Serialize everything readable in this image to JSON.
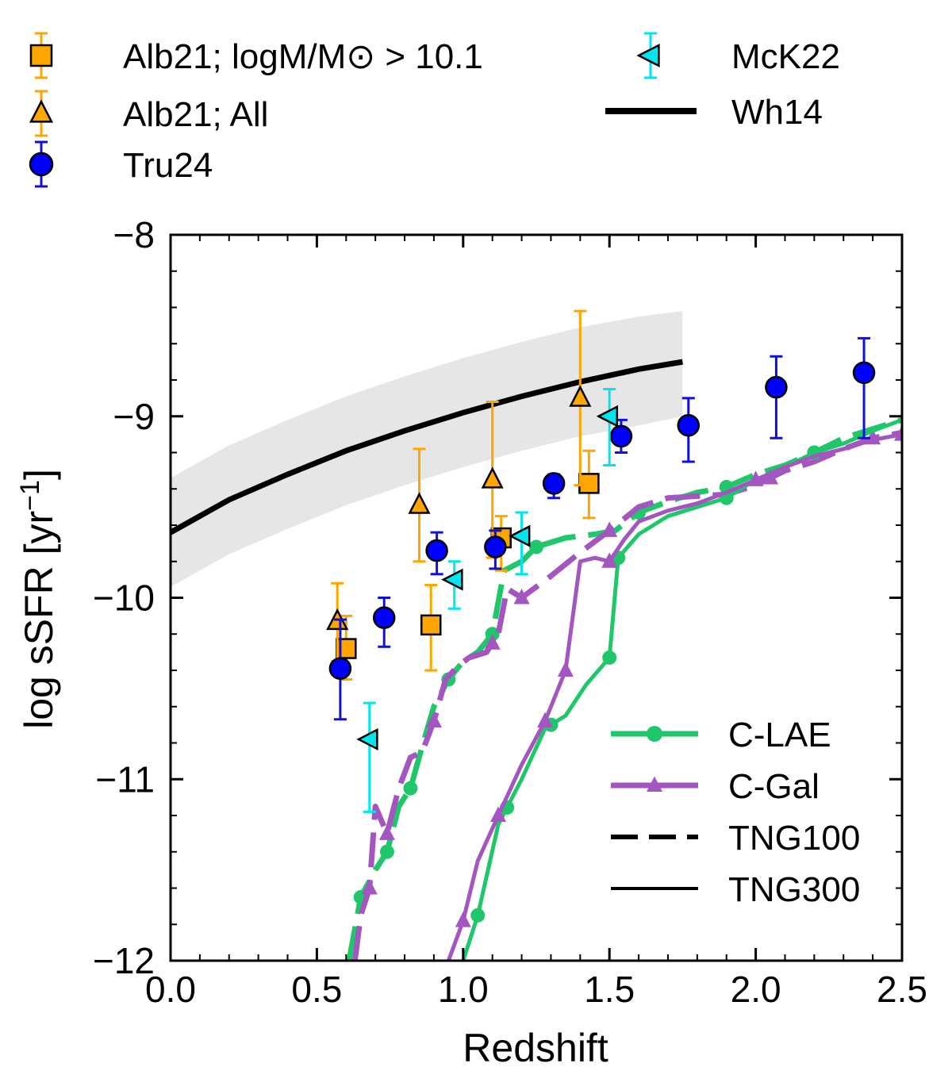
{
  "chart_data": {
    "type": "scatter",
    "xlabel": "Redshift",
    "ylabel_main": "log sSFR [yr",
    "ylabel_sup": "−1",
    "ylabel_close": "]",
    "xlim": [
      0.0,
      2.5
    ],
    "ylim": [
      -12,
      -8
    ],
    "xticks": [
      0.0,
      0.5,
      1.0,
      1.5,
      2.0,
      2.5
    ],
    "xtick_labels": [
      "0.0",
      "0.5",
      "1.0",
      "1.5",
      "2.0",
      "2.5"
    ],
    "yticks": [
      -12,
      -11,
      -10,
      -9,
      -8
    ],
    "ytick_labels": [
      "−12",
      "−11",
      "−10",
      "−9",
      "−8"
    ],
    "observations": [
      {
        "label": "Alb21;  logM/M⊙ > 10.1",
        "marker": "square",
        "color": "#FFA500",
        "errcolor": "#FFA500",
        "points": [
          {
            "x": 0.6,
            "y": -10.28,
            "lo": -10.45,
            "hi": -10.1
          },
          {
            "x": 0.89,
            "y": -10.15,
            "lo": -10.4,
            "hi": -9.93
          },
          {
            "x": 1.13,
            "y": -9.67,
            "lo": -9.85,
            "hi": -9.55
          },
          {
            "x": 1.43,
            "y": -9.37,
            "lo": -9.56,
            "hi": -9.19
          }
        ]
      },
      {
        "label": "Alb21; All",
        "marker": "triangle-up",
        "color": "#FFA500",
        "errcolor": "#FFA500",
        "points": [
          {
            "x": 0.57,
            "y": -10.13,
            "lo": -10.35,
            "hi": -9.92
          },
          {
            "x": 0.85,
            "y": -9.49,
            "lo": -9.8,
            "hi": -9.18
          },
          {
            "x": 1.1,
            "y": -9.35,
            "lo": -9.78,
            "hi": -8.92
          },
          {
            "x": 1.4,
            "y": -8.9,
            "lo": -9.38,
            "hi": -8.42
          }
        ]
      },
      {
        "label": "Tru24",
        "marker": "circle",
        "color": "#0000FF",
        "errcolor": "#1010DD",
        "points": [
          {
            "x": 0.58,
            "y": -10.39,
            "lo": -10.67,
            "hi": -10.12
          },
          {
            "x": 0.73,
            "y": -10.11,
            "lo": -10.27,
            "hi": -10.0
          },
          {
            "x": 0.91,
            "y": -9.74,
            "lo": -9.87,
            "hi": -9.64
          },
          {
            "x": 1.11,
            "y": -9.72,
            "lo": -9.84,
            "hi": -9.63
          },
          {
            "x": 1.31,
            "y": -9.37,
            "lo": -9.45,
            "hi": -9.32
          },
          {
            "x": 1.54,
            "y": -9.11,
            "lo": -9.2,
            "hi": -9.02
          },
          {
            "x": 1.77,
            "y": -9.05,
            "lo": -9.25,
            "hi": -8.9
          },
          {
            "x": 2.07,
            "y": -8.84,
            "lo": -9.12,
            "hi": -8.67
          },
          {
            "x": 2.37,
            "y": -8.76,
            "lo": -9.12,
            "hi": -8.57
          }
        ]
      },
      {
        "label": "McK22",
        "marker": "triangle-left",
        "color": "#00E5EE",
        "errcolor": "#00E5EE",
        "points": [
          {
            "x": 0.68,
            "y": -10.78,
            "lo": -11.18,
            "hi": -10.58
          },
          {
            "x": 0.97,
            "y": -9.9,
            "lo": -10.06,
            "hi": -9.8
          },
          {
            "x": 1.2,
            "y": -9.66,
            "lo": -9.87,
            "hi": -9.53
          },
          {
            "x": 1.5,
            "y": -9.0,
            "lo": -9.27,
            "hi": -8.85
          }
        ]
      }
    ],
    "wh14": {
      "label": "Wh14",
      "color": "#000000",
      "x": [
        0.0,
        0.2,
        0.4,
        0.6,
        0.8,
        1.0,
        1.2,
        1.4,
        1.6,
        1.75
      ],
      "y": [
        -9.64,
        -9.46,
        -9.32,
        -9.19,
        -9.08,
        -8.98,
        -8.89,
        -8.81,
        -8.74,
        -8.7
      ],
      "band_lo": [
        -9.94,
        -9.76,
        -9.62,
        -9.49,
        -9.38,
        -9.28,
        -9.19,
        -9.11,
        -9.05,
        -9.0
      ],
      "band_hi": [
        -9.34,
        -9.16,
        -9.02,
        -8.89,
        -8.78,
        -8.68,
        -8.59,
        -8.51,
        -8.45,
        -8.42
      ],
      "band_color": "#E6E6E6"
    },
    "simulations": [
      {
        "label": "C-LAE",
        "sim": "TNG100",
        "color": "#1FC76A",
        "dash": true,
        "marker": "circle",
        "x": [
          0.61,
          0.65,
          0.7,
          0.74,
          0.78,
          0.82,
          0.86,
          0.9,
          0.95,
          1.0,
          1.05,
          1.1,
          1.14,
          1.2,
          1.25,
          1.35,
          1.45,
          1.52,
          1.6,
          1.7,
          1.8,
          1.9,
          2.0,
          2.1,
          2.2,
          2.3,
          2.4,
          2.5
        ],
        "y": [
          -12.0,
          -11.65,
          -11.5,
          -11.4,
          -11.15,
          -11.05,
          -10.82,
          -10.6,
          -10.45,
          -10.35,
          -10.3,
          -10.2,
          -9.85,
          -9.8,
          -9.72,
          -9.67,
          -9.65,
          -9.63,
          -9.53,
          -9.47,
          -9.42,
          -9.39,
          -9.32,
          -9.27,
          -9.2,
          -9.12,
          -9.07,
          -9.02
        ],
        "markers": [
          0.65,
          0.74,
          0.82,
          0.95,
          1.1,
          1.25,
          1.6,
          1.9,
          2.2
        ]
      },
      {
        "label": "C-Gal",
        "sim": "TNG100",
        "color": "#A355C0",
        "dash": true,
        "marker": "triangle",
        "x": [
          0.63,
          0.65,
          0.68,
          0.7,
          0.74,
          0.78,
          0.82,
          0.86,
          0.9,
          0.94,
          0.98,
          1.02,
          1.08,
          1.12,
          1.15,
          1.2,
          1.3,
          1.4,
          1.5,
          1.6,
          1.7,
          1.8,
          1.9,
          2.0,
          2.1,
          2.2,
          2.3,
          2.4,
          2.5
        ],
        "y": [
          -12.0,
          -11.75,
          -11.6,
          -11.15,
          -11.3,
          -11.05,
          -10.88,
          -10.85,
          -10.68,
          -10.45,
          -10.38,
          -10.33,
          -10.3,
          -10.2,
          -9.95,
          -10.0,
          -9.88,
          -9.75,
          -9.63,
          -9.5,
          -9.45,
          -9.44,
          -9.43,
          -9.38,
          -9.3,
          -9.25,
          -9.18,
          -9.12,
          -9.09
        ],
        "markers": [
          0.68,
          0.74,
          0.9,
          1.1,
          1.2,
          1.5,
          2.05,
          2.4
        ]
      },
      {
        "label": "C-LAE",
        "sim": "TNG300",
        "color": "#1FC76A",
        "dash": false,
        "marker": "circle",
        "x": [
          1.0,
          1.05,
          1.12,
          1.2,
          1.28,
          1.35,
          1.42,
          1.5,
          1.53,
          1.6,
          1.7,
          1.8,
          1.9,
          2.0,
          2.1,
          2.2,
          2.3,
          2.4,
          2.5
        ],
        "y": [
          -12.0,
          -11.75,
          -11.25,
          -11.0,
          -10.72,
          -10.65,
          -10.48,
          -10.33,
          -9.78,
          -9.65,
          -9.55,
          -9.5,
          -9.45,
          -9.35,
          -9.28,
          -9.2,
          -9.15,
          -9.08,
          -9.02
        ],
        "markers": [
          1.05,
          1.15,
          1.3,
          1.5,
          1.53,
          1.9,
          2.2
        ]
      },
      {
        "label": "C-Gal",
        "sim": "TNG300",
        "color": "#A355C0",
        "dash": false,
        "marker": "triangle",
        "x": [
          0.95,
          1.0,
          1.05,
          1.12,
          1.2,
          1.28,
          1.35,
          1.4,
          1.45,
          1.5,
          1.55,
          1.6,
          1.7,
          1.8,
          1.9,
          2.0,
          2.1,
          2.2,
          2.3,
          2.4,
          2.5
        ],
        "y": [
          -12.0,
          -11.78,
          -11.45,
          -11.2,
          -10.92,
          -10.68,
          -10.4,
          -9.8,
          -9.78,
          -9.8,
          -9.68,
          -9.58,
          -9.52,
          -9.48,
          -9.42,
          -9.35,
          -9.28,
          -9.22,
          -9.18,
          -9.13,
          -9.1
        ],
        "markers": [
          1.0,
          1.12,
          1.28,
          1.35,
          1.5,
          2.0,
          2.5
        ]
      }
    ],
    "legend_color_entries": [
      {
        "label": "C-LAE",
        "color": "#1FC76A",
        "marker": "circle"
      },
      {
        "label": "C-Gal",
        "color": "#A355C0",
        "marker": "triangle"
      }
    ],
    "legend_style_entries": [
      {
        "label": "TNG100",
        "dash": true
      },
      {
        "label": "TNG300",
        "dash": false
      }
    ]
  }
}
